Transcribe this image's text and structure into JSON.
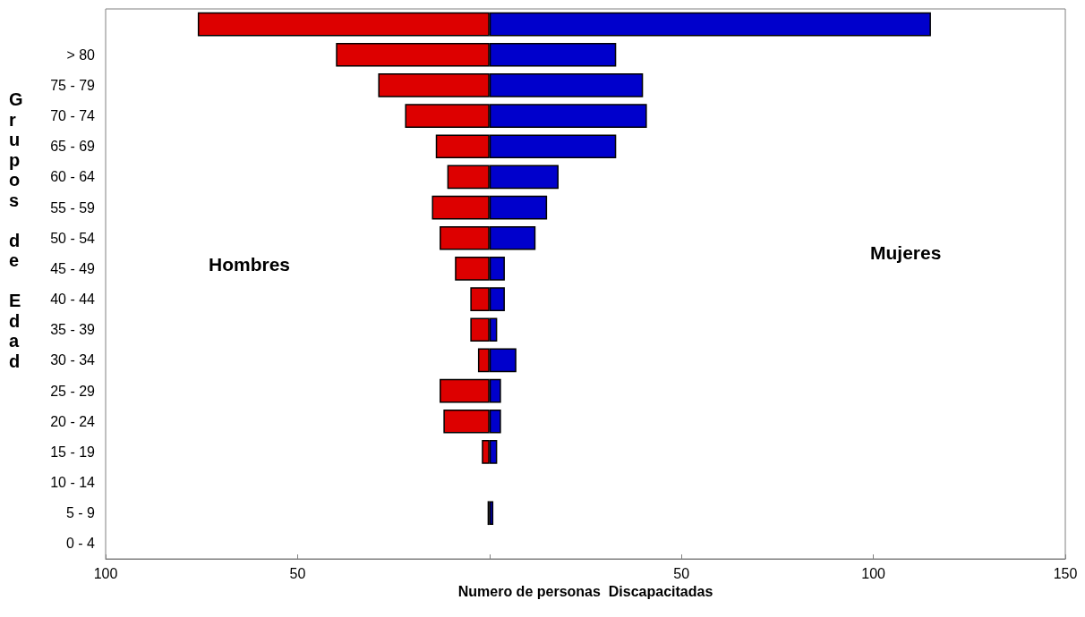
{
  "chart_data": {
    "type": "bar",
    "orientation": "horizontal",
    "stacked": true,
    "xlabel": "Numero de personas  Discapacitadas",
    "ylabel": "Grupos de Edad",
    "categories": [
      null,
      "> 80",
      "75 - 79",
      "70 - 74",
      "65 - 69",
      "60 - 64",
      "55 - 59",
      "50 - 54",
      "45 - 49",
      "40 - 44",
      "35 - 39",
      "30 - 34",
      "25 - 29",
      "20 - 24",
      "15 - 19",
      "10 - 14",
      "5 - 9",
      "0 - 4"
    ],
    "series": [
      {
        "color": "#dd0000",
        "values": [
          -76,
          -40,
          -29,
          -22,
          -14,
          -11,
          -15,
          -13,
          -9,
          -5,
          -5,
          -3,
          -13,
          -12,
          -2,
          null,
          -0.5,
          null
        ]
      },
      {
        "color": "#0000cc",
        "values": [
          115,
          33,
          40,
          41,
          33,
          18,
          15,
          12,
          4,
          4,
          2,
          7,
          3,
          3,
          2,
          null,
          1,
          null
        ]
      }
    ],
    "xlim": [
      -100,
      150
    ],
    "xticks": [
      {
        "value": -100,
        "label": "100"
      },
      {
        "value": -50,
        "label": "50"
      },
      {
        "value": 0,
        "label": null
      },
      50,
      100,
      150
    ],
    "annotations": [
      "Hombres",
      "Mujeres"
    ],
    "grid": false
  }
}
